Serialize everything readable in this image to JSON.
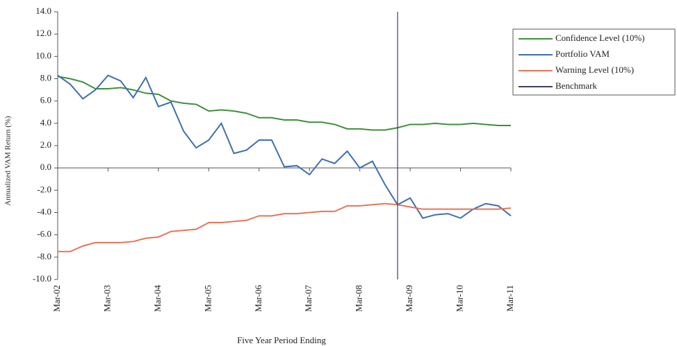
{
  "chart_data": {
    "type": "line",
    "x_label": "Five Year Period Ending",
    "y_label": "Annualized VAM Return (%)",
    "categories": [
      "Mar-02",
      null,
      null,
      null,
      "Mar-03",
      null,
      null,
      null,
      "Mar-04",
      null,
      null,
      null,
      "Mar-05",
      null,
      null,
      null,
      "Mar-06",
      null,
      null,
      null,
      "Mar-07",
      null,
      null,
      null,
      "Mar-08",
      null,
      null,
      null,
      "Mar-09",
      null,
      null,
      null,
      "Mar-10",
      null,
      null,
      null,
      "Mar-11"
    ],
    "series": [
      {
        "name": "Confidence Level (10%)",
        "color": "#3f8f3a",
        "values": [
          8.2,
          8.0,
          7.7,
          7.1,
          7.1,
          7.2,
          7.0,
          6.7,
          6.6,
          6.0,
          5.8,
          5.7,
          5.1,
          5.2,
          5.1,
          4.9,
          4.5,
          4.5,
          4.3,
          4.3,
          4.1,
          4.1,
          3.9,
          3.5,
          3.5,
          3.4,
          3.4,
          3.6,
          3.9,
          3.9,
          4.0,
          3.9,
          3.9,
          4.0,
          3.9,
          3.8,
          3.8
        ]
      },
      {
        "name": "Portfolio VAM",
        "color": "#3c6fb0",
        "values": [
          8.3,
          7.5,
          6.2,
          7.0,
          8.3,
          7.8,
          6.3,
          8.1,
          5.5,
          5.9,
          3.3,
          1.8,
          2.5,
          4.0,
          1.3,
          1.6,
          2.5,
          2.5,
          0.1,
          0.2,
          -0.6,
          0.8,
          0.4,
          1.5,
          0.0,
          0.6,
          -1.5,
          -3.3,
          -2.7,
          -4.5,
          -4.2,
          -4.1,
          -4.5,
          -3.7,
          -3.2,
          -3.4,
          -4.3
        ]
      },
      {
        "name": "Warning Level (10%)",
        "color": "#e8735a",
        "values": [
          -7.5,
          -7.5,
          -7.0,
          -6.7,
          -6.7,
          -6.7,
          -6.6,
          -6.3,
          -6.2,
          -5.7,
          -5.6,
          -5.5,
          -4.9,
          -4.9,
          -4.8,
          -4.7,
          -4.3,
          -4.3,
          -4.1,
          -4.1,
          -4.0,
          -3.9,
          -3.9,
          -3.4,
          -3.4,
          -3.3,
          -3.2,
          -3.3,
          -3.5,
          -3.7,
          -3.7,
          -3.7,
          -3.7,
          -3.7,
          -3.7,
          -3.7,
          -3.6
        ]
      },
      {
        "name": "Benchmark",
        "color": "#3d3f5e",
        "x_index": 27
      }
    ],
    "ylim": [
      -10,
      14
    ],
    "yticks": [
      {
        "value": -10,
        "label": "-10.0"
      },
      {
        "value": -8,
        "label": "-8.0"
      },
      {
        "value": -6,
        "label": "-6.0"
      },
      {
        "value": -4,
        "label": "-4.0"
      },
      {
        "value": -2,
        "label": "-2.0"
      },
      {
        "value": 0,
        "label": "0.0"
      },
      {
        "value": 2,
        "label": "2.0"
      },
      {
        "value": 4,
        "label": "4.0"
      },
      {
        "value": 6,
        "label": "6.0"
      },
      {
        "value": 8,
        "label": "8.0"
      },
      {
        "value": 10,
        "label": "10.0"
      },
      {
        "value": 12,
        "label": "12.0"
      },
      {
        "value": 14,
        "label": "14.0"
      }
    ],
    "grid": false
  }
}
